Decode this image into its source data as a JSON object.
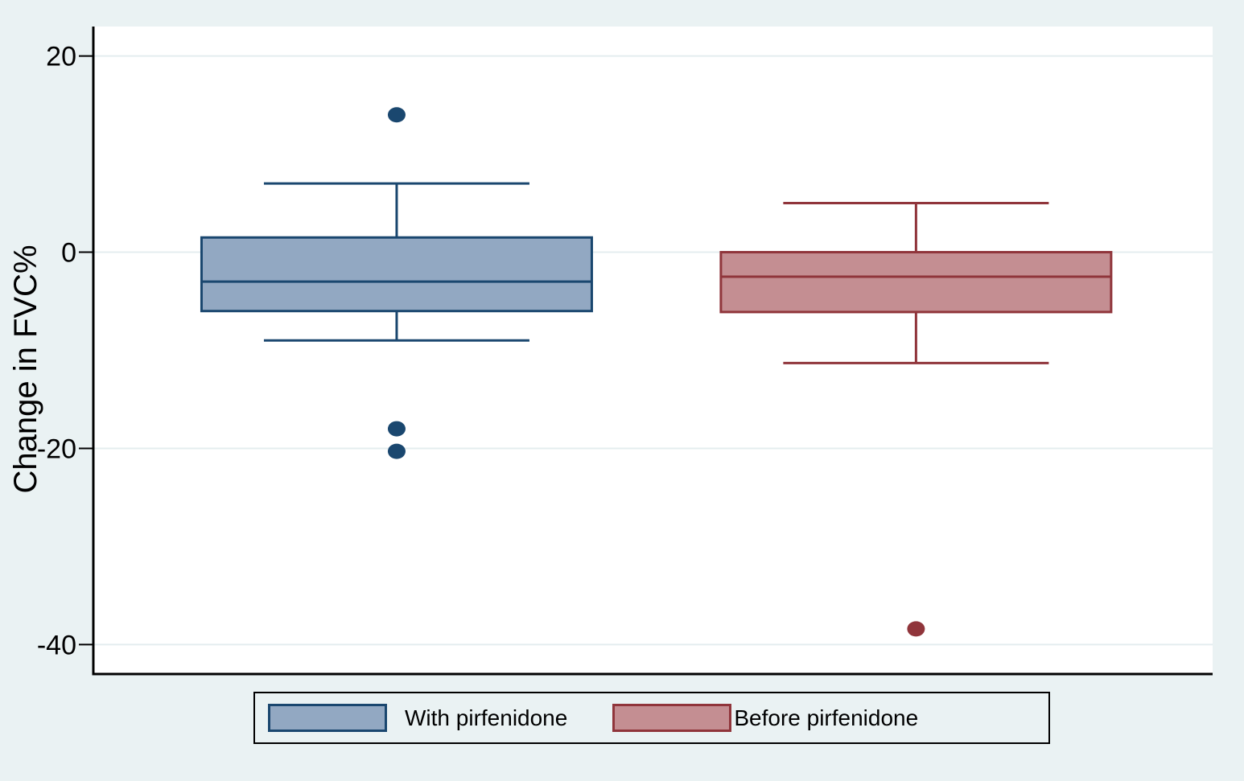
{
  "chart_data": {
    "type": "boxplot",
    "title": "",
    "xlabel": "",
    "ylabel": "Change in FVC%",
    "yticks": [
      20,
      0,
      -20,
      -40
    ],
    "ylim": [
      -43,
      23
    ],
    "grid": true,
    "legend_position": "bottom",
    "series": [
      {
        "name": "With pirfenidone",
        "x_frac": 0.271,
        "whisker_high": 7,
        "q3": 1.5,
        "median": -3,
        "q1": -6,
        "whisker_low": -9,
        "outliers": [
          14,
          -18,
          -20.3
        ],
        "fill": "#92A8C2",
        "stroke": "#1A476F"
      },
      {
        "name": "Before pirfenidone",
        "x_frac": 0.735,
        "whisker_high": 5,
        "q3": 0,
        "median": -2.5,
        "q1": -6.1,
        "whisker_low": -11.3,
        "outliers": [
          -38.4
        ],
        "fill": "#C48E92",
        "stroke": "#90353B"
      }
    ],
    "colors": {
      "background": "#EAF2F3",
      "plot_background": "#FFFFFF",
      "gridline": "#E4EDEF",
      "axis": "#000000"
    }
  }
}
